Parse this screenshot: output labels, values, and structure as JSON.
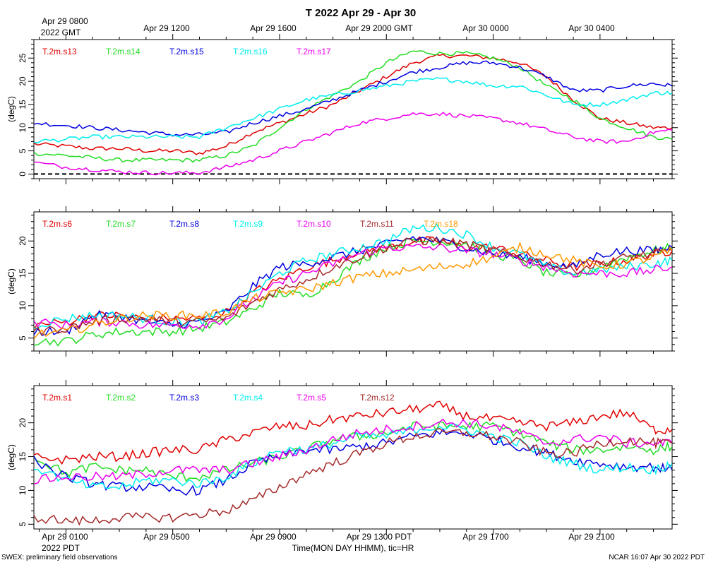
{
  "title": "T 2022 Apr 29 - Apr 30",
  "top_axis": {
    "first_label_line1": "Apr 29 0800",
    "first_label_line2": "2022 GMT",
    "labels": [
      "Apr 29 1200",
      "Apr 29 1600",
      "Apr 29 2000 GMT",
      "Apr 30 0000",
      "Apr 30 0400"
    ]
  },
  "bottom_axis": {
    "first_label_line1": "Apr 29 0100",
    "first_label_line2": "2022 PDT",
    "labels": [
      "Apr 29 0500",
      "Apr 29 0900",
      "Apr 29 1300 PDT",
      "Apr 29 1700",
      "Apr 29 2100"
    ],
    "xlabel": "Time(MON DAY HHMM), tic=HR"
  },
  "footer": {
    "left": "SWEX: preliminary field observations",
    "right": "NCAR 16:07 Apr 30 2022 PDT"
  },
  "chart_data": [
    {
      "type": "line",
      "panel": "top",
      "ylabel": "(degC)",
      "x_unit": "hours since Apr 29 0000 PDT",
      "xlim": [
        -0.2,
        23.7
      ],
      "ylim": [
        -1,
        29
      ],
      "yticks": [
        0,
        5,
        10,
        15,
        20,
        25
      ],
      "reference_line": {
        "y": 0,
        "style": "dashed"
      },
      "x": [
        -0.2,
        1,
        2,
        3,
        4,
        5,
        6,
        7,
        8,
        9,
        10,
        11,
        12,
        13,
        14,
        15,
        16,
        17,
        18,
        19,
        20,
        21,
        22,
        23,
        23.7
      ],
      "series": [
        {
          "name": "T.2m.s13",
          "color": "#e00000",
          "values": [
            6.5,
            6,
            5.5,
            5.5,
            5,
            5,
            4.5,
            6,
            9,
            11,
            13,
            15,
            18,
            21,
            24,
            25.5,
            25.5,
            25,
            24,
            21,
            16,
            12,
            11,
            10,
            10
          ]
        },
        {
          "name": "T.2m.s14",
          "color": "#22dd22",
          "values": [
            4.5,
            4,
            3.5,
            3,
            3,
            3,
            3,
            4,
            6,
            10,
            14,
            17,
            20,
            24,
            26.5,
            26,
            26,
            25,
            23,
            19,
            16,
            12,
            10,
            8,
            7.5
          ]
        },
        {
          "name": "T.2m.s15",
          "color": "#0000e0",
          "values": [
            11,
            10.5,
            10,
            9.5,
            9,
            8.5,
            8.5,
            9,
            11,
            12.5,
            14,
            16,
            18,
            20,
            22,
            23,
            24,
            24,
            23,
            21,
            18,
            18,
            19,
            19.5,
            19
          ]
        },
        {
          "name": "T.2m.s16",
          "color": "#00eeee",
          "values": [
            7,
            7.5,
            8,
            8,
            8,
            8,
            8,
            10,
            12,
            14,
            16,
            17,
            18,
            19,
            20,
            20.5,
            20,
            19,
            19,
            17,
            15,
            15,
            16,
            17.5,
            17.5
          ]
        },
        {
          "name": "T.2m.s17",
          "color": "#ee00ee",
          "values": [
            2.5,
            1.5,
            1,
            0.5,
            0.3,
            0.2,
            0.3,
            1.5,
            3,
            5,
            7,
            9,
            11,
            12,
            13,
            13,
            12.5,
            12,
            11,
            9.5,
            8,
            7,
            7,
            9,
            9.5
          ]
        }
      ]
    },
    {
      "type": "line",
      "panel": "middle",
      "ylabel": "(degC)",
      "x_unit": "hours since Apr 29 0000 PDT",
      "xlim": [
        -0.2,
        23.7
      ],
      "ylim": [
        3,
        24.5
      ],
      "yticks": [
        5,
        10,
        15,
        20
      ],
      "x": [
        -0.2,
        1,
        2,
        3,
        4,
        5,
        6,
        7,
        8,
        9,
        10,
        11,
        12,
        13,
        14,
        15,
        16,
        17,
        18,
        19,
        20,
        21,
        22,
        23,
        23.7
      ],
      "series": [
        {
          "name": "T.2m.s6",
          "color": "#e00000",
          "values": [
            7,
            7.5,
            8.5,
            8.5,
            8,
            8,
            8,
            9,
            12,
            14,
            16,
            17,
            18.5,
            19,
            20,
            20,
            19,
            19,
            18,
            17,
            16,
            16.5,
            17,
            18,
            18.5
          ]
        },
        {
          "name": "T.2m.s7",
          "color": "#22dd22",
          "values": [
            4.5,
            4.5,
            5.5,
            6,
            6,
            6,
            6.5,
            7.5,
            9.5,
            12,
            11.5,
            14,
            17,
            19,
            20,
            20,
            19.5,
            18,
            17,
            15,
            14.5,
            16,
            17.5,
            18.5,
            19
          ]
        },
        {
          "name": "T.2m.s8",
          "color": "#0000e0",
          "values": [
            6,
            6,
            8.5,
            8.5,
            7.5,
            7,
            7.5,
            9,
            13,
            16,
            16.5,
            17.5,
            18.5,
            19.5,
            20.5,
            20,
            19,
            18,
            17.5,
            16.5,
            16,
            18,
            18.5,
            18.5,
            19
          ]
        },
        {
          "name": "T.2m.s9",
          "color": "#00eeee",
          "values": [
            7,
            8,
            8.5,
            8.5,
            8,
            7.5,
            7.5,
            9,
            12,
            15,
            17,
            18,
            19,
            20,
            22,
            22,
            21,
            19,
            18,
            16,
            15,
            15.5,
            16,
            16.5,
            17
          ]
        },
        {
          "name": "T.2m.s10",
          "color": "#ee00ee",
          "values": [
            7.5,
            7,
            7.5,
            7.5,
            7,
            7,
            7,
            8,
            11,
            13.5,
            15,
            16.5,
            18,
            19,
            19,
            19,
            18.5,
            18,
            17,
            16,
            15,
            15,
            15,
            15.5,
            16
          ]
        },
        {
          "name": "T.2m.s11",
          "color": "#a52a2a",
          "values": [
            6,
            6.5,
            7.5,
            8,
            8,
            7.5,
            7.5,
            8,
            10.5,
            12.5,
            14,
            16,
            17.5,
            19,
            20,
            20,
            19.5,
            18.5,
            17.5,
            16.5,
            15.5,
            16.5,
            17.5,
            18,
            18.5
          ]
        },
        {
          "name": "T.2m.s18",
          "color": "#ff9900",
          "values": [
            5.5,
            6,
            7,
            8,
            8.5,
            8.5,
            8.5,
            9,
            11,
            12,
            12.5,
            13.5,
            14.5,
            15,
            15.5,
            16,
            16.5,
            17.5,
            19,
            18,
            17,
            16,
            16.5,
            17.5,
            18.5
          ]
        }
      ]
    },
    {
      "type": "line",
      "panel": "bottom",
      "ylabel": "(degC)",
      "x_unit": "hours since Apr 29 0000 PDT",
      "xlim": [
        -0.2,
        23.7
      ],
      "ylim": [
        4.3,
        25.5
      ],
      "yticks": [
        5,
        10,
        15,
        20
      ],
      "x": [
        -0.2,
        1,
        2,
        3,
        4,
        5,
        6,
        7,
        8,
        9,
        10,
        11,
        12,
        13,
        14,
        15,
        16,
        17,
        18,
        19,
        20,
        21,
        22,
        23,
        23.7
      ],
      "series": [
        {
          "name": "T.2m.s1",
          "color": "#e00000",
          "values": [
            15,
            14.5,
            15,
            15,
            15.5,
            16,
            16,
            17.5,
            18.5,
            19.5,
            19.5,
            20.5,
            21,
            21.5,
            22,
            22.5,
            21,
            20.5,
            20,
            19.5,
            20,
            21,
            21.5,
            19,
            19
          ]
        },
        {
          "name": "T.2m.s2",
          "color": "#22dd22",
          "values": [
            15,
            12.5,
            13.5,
            13,
            13,
            12,
            12,
            13,
            14,
            15,
            16,
            17.5,
            18,
            18.5,
            19.5,
            19.5,
            19.5,
            19.5,
            18.5,
            17,
            16,
            16,
            16.5,
            16,
            16.5
          ]
        },
        {
          "name": "T.2m.s3",
          "color": "#0000e0",
          "values": [
            14.5,
            12,
            11,
            10.5,
            10.5,
            10,
            10,
            11.5,
            14,
            15,
            16,
            16,
            16.5,
            17,
            18,
            18.5,
            18.5,
            17.5,
            16.5,
            15.5,
            14.5,
            14,
            13.5,
            13.5,
            13
          ]
        },
        {
          "name": "T.2m.s4",
          "color": "#00eeee",
          "values": [
            13.5,
            11.5,
            10.5,
            10.5,
            11.5,
            11.5,
            11,
            12,
            14,
            16,
            16,
            17,
            18,
            18,
            19,
            19.5,
            19,
            18,
            17,
            15,
            14,
            13,
            13.5,
            13,
            14
          ]
        },
        {
          "name": "T.2m.s5",
          "color": "#ee00ee",
          "values": [
            11.5,
            12,
            12,
            12,
            12.5,
            13,
            13,
            13,
            14,
            15,
            16,
            17.5,
            18.5,
            19,
            19.5,
            20,
            20,
            19.5,
            18.5,
            17,
            17.5,
            18,
            17,
            17,
            17
          ]
        },
        {
          "name": "T.2m.s12",
          "color": "#a52a2a",
          "values": [
            6,
            5.5,
            5.5,
            6,
            6,
            6,
            6.5,
            7,
            8.5,
            10.5,
            12.5,
            14,
            15.5,
            17,
            18,
            18.5,
            18.5,
            18,
            17,
            15.5,
            15.5,
            17,
            17.5,
            17,
            17
          ]
        }
      ]
    }
  ]
}
